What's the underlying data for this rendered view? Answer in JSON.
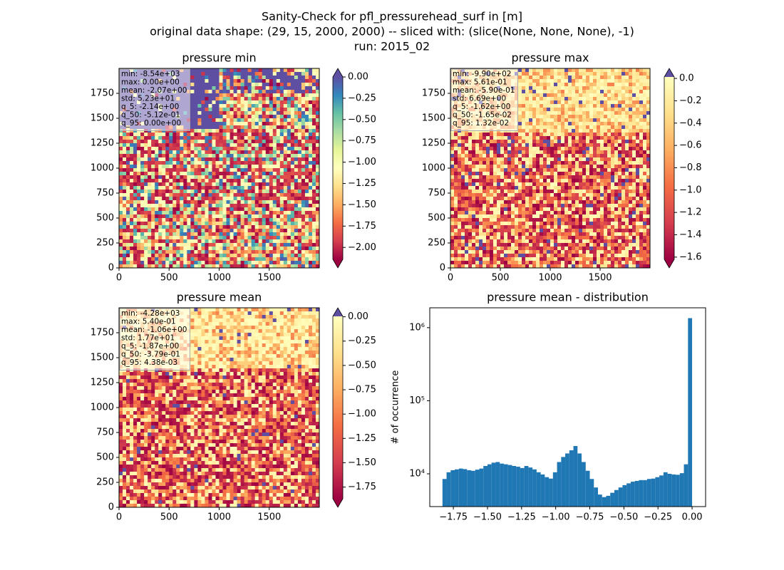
{
  "figure_title": [
    "Sanity-Check for pfl_pressurehead_surf in [m]",
    "original data shape: (29, 15, 2000, 2000) -- sliced with: (slice(None, None, None), -1)",
    "run: 2015_02"
  ],
  "chart_data": [
    {
      "type": "image",
      "title": "pressure min",
      "xlim": [
        0,
        2000
      ],
      "ylim": [
        0,
        2000
      ],
      "xticks": [
        0,
        500,
        1000,
        1500
      ],
      "yticks": [
        0,
        250,
        500,
        750,
        1000,
        1250,
        1500,
        1750
      ],
      "stats": [
        "min: -8.54e+03",
        "max: 0.00e+00",
        "mean: -2.07e+00",
        "std: 5.23e+01",
        "q_5: -2.14e+00",
        "q_50: -5.12e-01",
        "q_95: 0.00e+00"
      ],
      "colorbar": {
        "lim": [
          -2.14,
          0
        ],
        "colors": [
          "#9e0142",
          "#d53e4f",
          "#f46d43",
          "#fdae61",
          "#fee08b",
          "#ffffbf",
          "#e6f598",
          "#abdda4",
          "#66c2a5",
          "#3288bd",
          "#5e4fa2"
        ],
        "under": "#9e0142",
        "over": "#5e4fa2",
        "ticks": [
          {
            "value": 0,
            "label": "0.00"
          },
          {
            "value": -0.25,
            "label": "−0.25"
          },
          {
            "value": -0.5,
            "label": "−0.50"
          },
          {
            "value": -0.75,
            "label": "−0.75"
          },
          {
            "value": -1,
            "label": "−1.00"
          },
          {
            "value": -1.25,
            "label": "−1.25"
          },
          {
            "value": -1.5,
            "label": "−1.50"
          },
          {
            "value": -1.75,
            "label": "−1.75"
          },
          {
            "value": -2,
            "label": "−2.00"
          }
        ]
      }
    },
    {
      "type": "image",
      "title": "pressure max",
      "xlim": [
        0,
        2000
      ],
      "ylim": [
        0,
        2000
      ],
      "xticks": [
        0,
        500,
        1000,
        1500
      ],
      "yticks": [
        0,
        250,
        500,
        750,
        1000,
        1250,
        1500,
        1750
      ],
      "stats": [
        "min: -9.90e+02",
        "max: 5.61e-01",
        "mean: -5.90e-01",
        "std: 6.69e+00",
        "q_5: -1.62e+00",
        "q_50: -1.65e-02",
        "q_95: 1.32e-02"
      ],
      "colorbar": {
        "lim": [
          -1.62,
          0.0132
        ],
        "colors": [
          "#9e0142",
          "#d53e4f",
          "#f46d43",
          "#fdae61",
          "#fee08b",
          "#ffffbf"
        ],
        "under": "#9e0142",
        "over": "#5e4fa2",
        "ticks": [
          {
            "value": 0,
            "label": "0.0"
          },
          {
            "value": -0.2,
            "label": "−0.2"
          },
          {
            "value": -0.4,
            "label": "−0.4"
          },
          {
            "value": -0.6,
            "label": "−0.6"
          },
          {
            "value": -0.8,
            "label": "−0.8"
          },
          {
            "value": -1,
            "label": "−1.0"
          },
          {
            "value": -1.2,
            "label": "−1.2"
          },
          {
            "value": -1.4,
            "label": "−1.4"
          },
          {
            "value": -1.6,
            "label": "−1.6"
          }
        ]
      }
    },
    {
      "type": "image",
      "title": "pressure mean",
      "xlim": [
        0,
        2000
      ],
      "ylim": [
        0,
        2000
      ],
      "xticks": [
        0,
        500,
        1000,
        1500
      ],
      "yticks": [
        0,
        250,
        500,
        750,
        1000,
        1250,
        1500,
        1750
      ],
      "stats": [
        "min: -4.28e+03",
        "max: 5.40e-01",
        "mean: -1.06e+00",
        "std: 1.77e+01",
        "q_5: -1.87e+00",
        "q_50: -3.79e-01",
        "q_95: 4.38e-03"
      ],
      "colorbar": {
        "lim": [
          -1.87,
          0.00438
        ],
        "colors": [
          "#9e0142",
          "#d53e4f",
          "#f46d43",
          "#fdae61",
          "#fee08b",
          "#ffffbf"
        ],
        "under": "#9e0142",
        "over": "#5e4fa2",
        "ticks": [
          {
            "value": 0,
            "label": "0.00"
          },
          {
            "value": -0.25,
            "label": "−0.25"
          },
          {
            "value": -0.5,
            "label": "−0.50"
          },
          {
            "value": -0.75,
            "label": "−0.75"
          },
          {
            "value": -1,
            "label": "−1.00"
          },
          {
            "value": -1.25,
            "label": "−1.25"
          },
          {
            "value": -1.5,
            "label": "−1.50"
          },
          {
            "value": -1.75,
            "label": "−1.75"
          }
        ]
      }
    },
    {
      "type": "histogram",
      "title": "pressure mean - distribution",
      "ylabel": "# of occurrence",
      "color": "#1f77b4",
      "log_y": true,
      "xlim": [
        -1.923,
        0.099
      ],
      "ylim": [
        3560,
        1870000
      ],
      "xticks": [
        {
          "value": -1.75,
          "label": "−1.75"
        },
        {
          "value": -1.5,
          "label": "−1.50"
        },
        {
          "value": -1.25,
          "label": "−1.25"
        },
        {
          "value": -1,
          "label": "−1.00"
        },
        {
          "value": -0.75,
          "label": "−0.75"
        },
        {
          "value": -0.5,
          "label": "−0.50"
        },
        {
          "value": -0.25,
          "label": "−0.25"
        },
        {
          "value": 0,
          "label": "0.00"
        }
      ],
      "yticks": [
        {
          "value": 10000,
          "label": "10⁴"
        },
        {
          "value": 100000,
          "label": "10⁵"
        },
        {
          "value": 1000000,
          "label": "10⁶"
        }
      ],
      "bins": [
        -1.83,
        -1.8,
        -1.77,
        -1.74,
        -1.71,
        -1.68,
        -1.65,
        -1.62,
        -1.59,
        -1.56,
        -1.53,
        -1.5,
        -1.47,
        -1.44,
        -1.41,
        -1.38,
        -1.35,
        -1.32,
        -1.29,
        -1.26,
        -1.23,
        -1.2,
        -1.17,
        -1.14,
        -1.11,
        -1.08,
        -1.05,
        -1.02,
        -0.99,
        -0.96,
        -0.93,
        -0.9,
        -0.87,
        -0.84,
        -0.81,
        -0.78,
        -0.75,
        -0.72,
        -0.69,
        -0.66,
        -0.63,
        -0.6,
        -0.57,
        -0.54,
        -0.51,
        -0.48,
        -0.45,
        -0.42,
        -0.39,
        -0.36,
        -0.33,
        -0.3,
        -0.27,
        -0.24,
        -0.21,
        -0.18,
        -0.15,
        -0.12,
        -0.09,
        -0.06,
        -0.03,
        0
      ],
      "values": [
        8500,
        10500,
        11200,
        11500,
        11800,
        11600,
        11200,
        11000,
        11400,
        11800,
        12800,
        13500,
        14200,
        14500,
        13800,
        13500,
        13200,
        12800,
        12500,
        12000,
        12800,
        12200,
        11500,
        10500,
        9800,
        9000,
        8600,
        10500,
        14500,
        17000,
        19000,
        21000,
        24000,
        19000,
        14500,
        11000,
        8500,
        6500,
        5200,
        4800,
        5000,
        5500,
        6000,
        6500,
        7000,
        7400,
        7800,
        8000,
        8200,
        8200,
        8500,
        8600,
        9000,
        9500,
        10500,
        10000,
        9800,
        9700,
        10200,
        13500,
        1350000
      ]
    }
  ]
}
